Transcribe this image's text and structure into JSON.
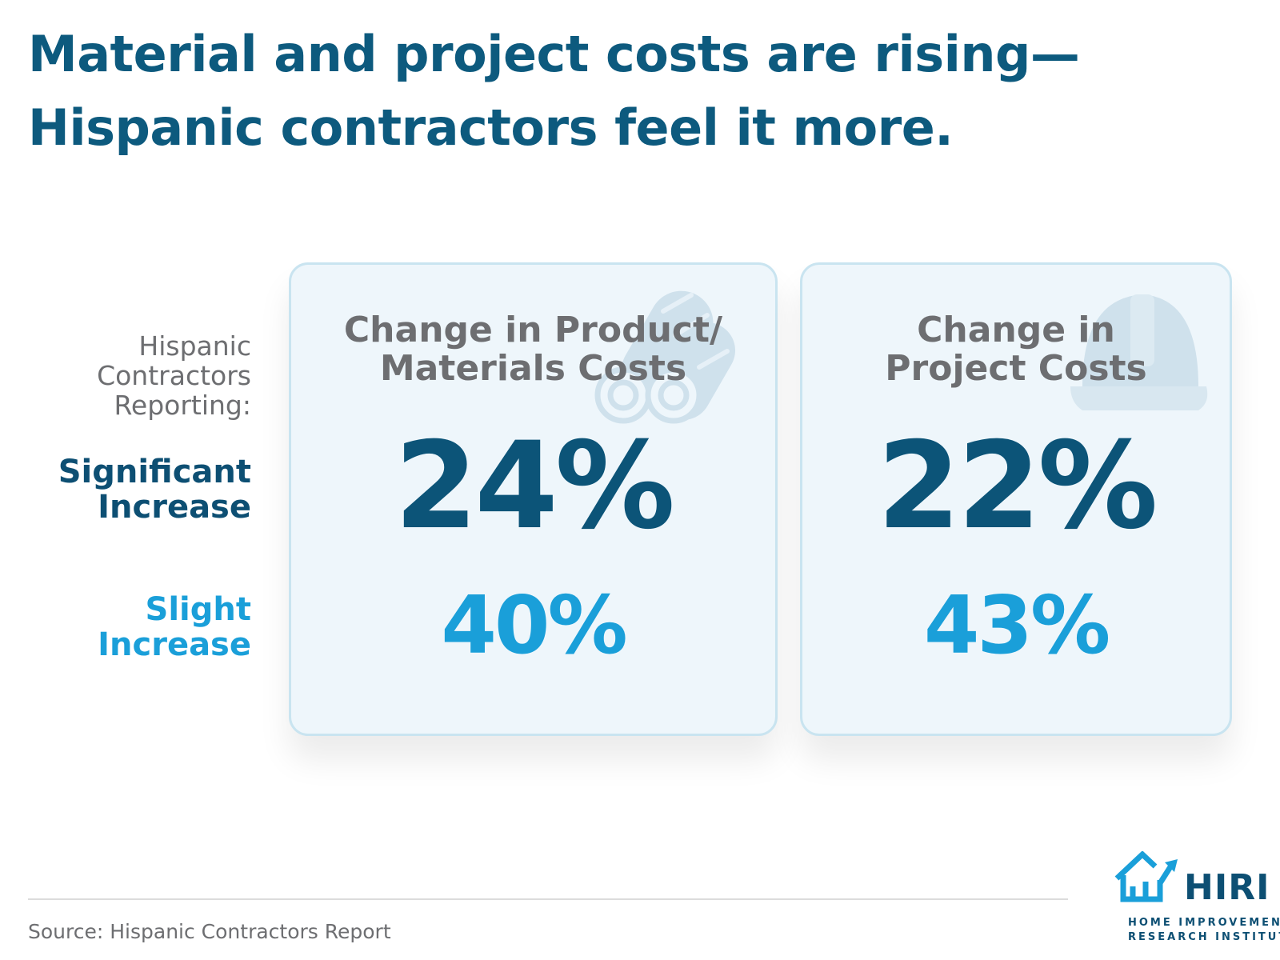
{
  "title": {
    "line1": "Material and project costs are rising—",
    "line2": "Hispanic contractors feel it more."
  },
  "row_labels": {
    "reporting": [
      "Hispanic",
      "Contractors",
      "Reporting:"
    ],
    "significant": [
      "Significant",
      "Increase"
    ],
    "slight": [
      "Slight",
      "Increase"
    ]
  },
  "cards": [
    {
      "heading": [
        "Change in Product/",
        "Materials Costs"
      ],
      "significant": "24%",
      "slight": "40%",
      "icon": "lumber-logs-icon"
    },
    {
      "heading": [
        "Change in",
        "Project Costs"
      ],
      "significant": "22%",
      "slight": "43%",
      "icon": "hard-hat-icon"
    }
  ],
  "colors": {
    "title": "#0d5a7e",
    "significant": "#0c5478",
    "slight": "#1a9fd9",
    "card_bg": "#eef6fb",
    "card_border": "#c9e4f0",
    "heading_gray": "#6d6e71"
  },
  "footer": {
    "source": "Source: Hispanic Contractors Report"
  },
  "logo": {
    "name": "HIRI",
    "line1": "HOME IMPROVEMENT",
    "line2": "RESEARCH INSTITUTE"
  }
}
